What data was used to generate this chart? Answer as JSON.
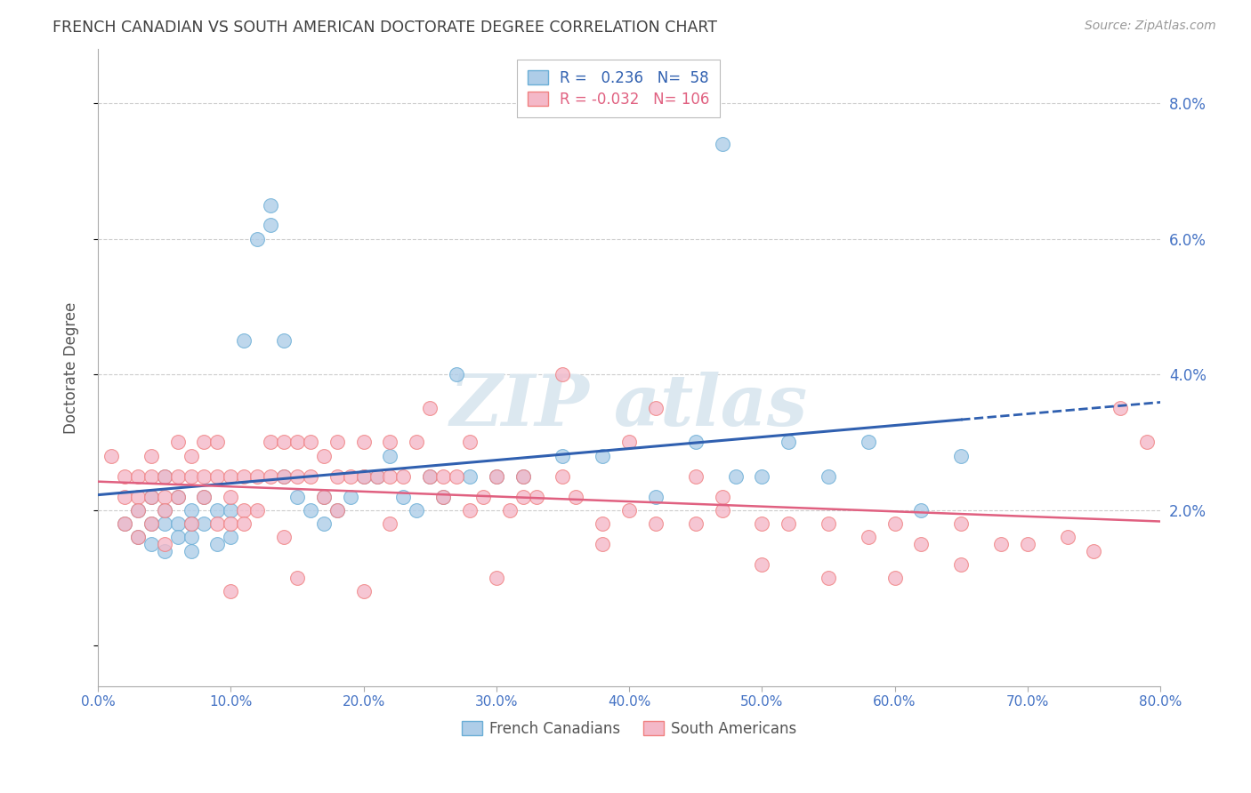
{
  "title": "FRENCH CANADIAN VS SOUTH AMERICAN DOCTORATE DEGREE CORRELATION CHART",
  "source": "Source: ZipAtlas.com",
  "ylabel": "Doctorate Degree",
  "yticks": [
    0.0,
    0.02,
    0.04,
    0.06,
    0.08
  ],
  "ytick_labels": [
    "",
    "2.0%",
    "4.0%",
    "6.0%",
    "8.0%"
  ],
  "xlim": [
    0.0,
    0.8
  ],
  "ylim": [
    -0.006,
    0.088
  ],
  "blue_R": 0.236,
  "blue_N": 58,
  "pink_R": -0.032,
  "pink_N": 106,
  "blue_edge_color": "#6aaed6",
  "pink_edge_color": "#f08080",
  "blue_fill_color": "#aecde8",
  "pink_fill_color": "#f4b8c8",
  "blue_line_color": "#3060b0",
  "pink_line_color": "#e06080",
  "grid_color": "#cccccc",
  "title_color": "#404040",
  "axis_tick_color": "#4472c4",
  "watermark_color": "#dce8f0",
  "blue_scatter_x": [
    0.02,
    0.03,
    0.03,
    0.04,
    0.04,
    0.04,
    0.05,
    0.05,
    0.05,
    0.05,
    0.06,
    0.06,
    0.06,
    0.07,
    0.07,
    0.07,
    0.07,
    0.08,
    0.08,
    0.09,
    0.09,
    0.1,
    0.1,
    0.11,
    0.12,
    0.13,
    0.13,
    0.14,
    0.14,
    0.15,
    0.16,
    0.17,
    0.17,
    0.18,
    0.19,
    0.2,
    0.21,
    0.22,
    0.23,
    0.24,
    0.25,
    0.26,
    0.28,
    0.3,
    0.32,
    0.35,
    0.38,
    0.42,
    0.45,
    0.48,
    0.5,
    0.52,
    0.55,
    0.58,
    0.62,
    0.65,
    0.47,
    0.27
  ],
  "blue_scatter_y": [
    0.018,
    0.02,
    0.016,
    0.022,
    0.018,
    0.015,
    0.025,
    0.02,
    0.018,
    0.014,
    0.022,
    0.018,
    0.016,
    0.02,
    0.018,
    0.016,
    0.014,
    0.022,
    0.018,
    0.02,
    0.015,
    0.02,
    0.016,
    0.045,
    0.06,
    0.065,
    0.062,
    0.045,
    0.025,
    0.022,
    0.02,
    0.022,
    0.018,
    0.02,
    0.022,
    0.025,
    0.025,
    0.028,
    0.022,
    0.02,
    0.025,
    0.022,
    0.025,
    0.025,
    0.025,
    0.028,
    0.028,
    0.022,
    0.03,
    0.025,
    0.025,
    0.03,
    0.025,
    0.03,
    0.02,
    0.028,
    0.074,
    0.04
  ],
  "pink_scatter_x": [
    0.01,
    0.02,
    0.02,
    0.02,
    0.03,
    0.03,
    0.03,
    0.03,
    0.04,
    0.04,
    0.04,
    0.04,
    0.05,
    0.05,
    0.05,
    0.05,
    0.06,
    0.06,
    0.06,
    0.07,
    0.07,
    0.07,
    0.08,
    0.08,
    0.08,
    0.09,
    0.09,
    0.09,
    0.1,
    0.1,
    0.1,
    0.11,
    0.11,
    0.12,
    0.12,
    0.13,
    0.13,
    0.14,
    0.14,
    0.15,
    0.15,
    0.16,
    0.16,
    0.17,
    0.17,
    0.18,
    0.18,
    0.19,
    0.2,
    0.2,
    0.21,
    0.22,
    0.22,
    0.23,
    0.24,
    0.25,
    0.26,
    0.27,
    0.28,
    0.29,
    0.3,
    0.31,
    0.32,
    0.33,
    0.35,
    0.36,
    0.38,
    0.4,
    0.42,
    0.45,
    0.47,
    0.5,
    0.52,
    0.55,
    0.58,
    0.6,
    0.62,
    0.65,
    0.68,
    0.7,
    0.73,
    0.75,
    0.77,
    0.79,
    0.25,
    0.28,
    0.35,
    0.4,
    0.45,
    0.38,
    0.3,
    0.2,
    0.15,
    0.1,
    0.5,
    0.55,
    0.6,
    0.65,
    0.47,
    0.42,
    0.32,
    0.26,
    0.22,
    0.18,
    0.14,
    0.11
  ],
  "pink_scatter_y": [
    0.028,
    0.025,
    0.022,
    0.018,
    0.025,
    0.022,
    0.02,
    0.016,
    0.028,
    0.025,
    0.022,
    0.018,
    0.025,
    0.022,
    0.02,
    0.015,
    0.03,
    0.025,
    0.022,
    0.028,
    0.025,
    0.018,
    0.03,
    0.025,
    0.022,
    0.03,
    0.025,
    0.018,
    0.025,
    0.022,
    0.018,
    0.025,
    0.02,
    0.025,
    0.02,
    0.03,
    0.025,
    0.03,
    0.025,
    0.03,
    0.025,
    0.03,
    0.025,
    0.028,
    0.022,
    0.03,
    0.025,
    0.025,
    0.03,
    0.025,
    0.025,
    0.03,
    0.025,
    0.025,
    0.03,
    0.025,
    0.025,
    0.025,
    0.03,
    0.022,
    0.025,
    0.02,
    0.025,
    0.022,
    0.025,
    0.022,
    0.018,
    0.02,
    0.018,
    0.018,
    0.02,
    0.018,
    0.018,
    0.018,
    0.016,
    0.018,
    0.015,
    0.018,
    0.015,
    0.015,
    0.016,
    0.014,
    0.035,
    0.03,
    0.035,
    0.02,
    0.04,
    0.03,
    0.025,
    0.015,
    0.01,
    0.008,
    0.01,
    0.008,
    0.012,
    0.01,
    0.01,
    0.012,
    0.022,
    0.035,
    0.022,
    0.022,
    0.018,
    0.02,
    0.016,
    0.018
  ]
}
